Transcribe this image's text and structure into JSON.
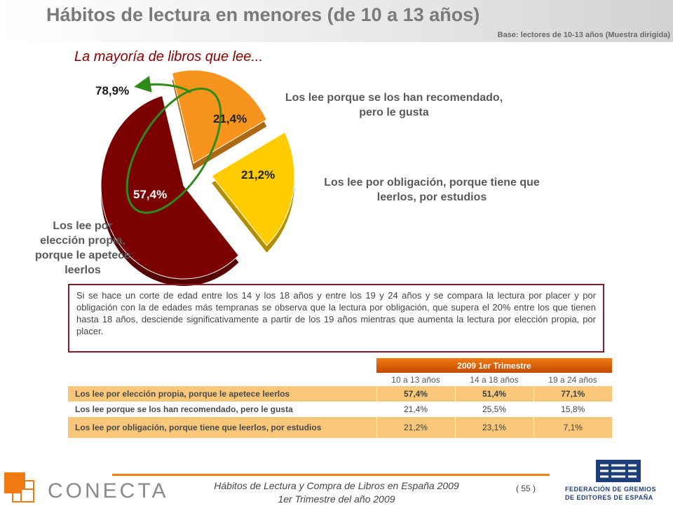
{
  "header": {
    "title": "Hábitos de lectura en menores (de 10 a 13 años)",
    "base": "Base: lectores de 10-13 años (Muestra dirigida)"
  },
  "subtitle": "La mayoría de libros que lee...",
  "chart_data": {
    "type": "pie",
    "slices": [
      {
        "label": "Los lee por elección propia, porque le apetece leerlos",
        "value": 57.4,
        "display": "57,4%",
        "color": "#7b0000"
      },
      {
        "label": "Los lee porque se los han recomendado, pero le gusta",
        "value": 21.4,
        "display": "21,4%",
        "color": "#f7941d"
      },
      {
        "label": "Los lee por obligación, porque tiene que leerlos, por estudios",
        "value": 21.2,
        "display": "21,2%",
        "color": "#ffcc00"
      }
    ],
    "annotation": "78,9%"
  },
  "labels": {
    "recommended_line1": "Los lee porque se los han recomendado,",
    "recommended_line2": "pero le gusta",
    "obligation_line1": "Los lee por obligación, porque tiene que",
    "obligation_line2": "leerlos, por estudios",
    "choice_line1": "Los lee por",
    "choice_line2": "elección propia,",
    "choice_line3": "porque le apetece",
    "choice_line4": "leerlos"
  },
  "note": "Si se hace un corte de edad entre los 14 y los 18 años y entre los 19 y 24 años y se compara la lectura por placer y por obligación con la de edades más tempranas se observa que la lectura por obligación, que supera el 20% entre los que tienen hasta 18 años, desciende significativamente a partir de los 19 años mientras que aumenta la lectura por elección propia, por placer.",
  "table": {
    "group_header": "2009 1er Trimestre",
    "columns": [
      "10 a 13 años",
      "14 a 18 años",
      "19 a 24 años"
    ],
    "rows": [
      {
        "label": "Los lee por elección propia, porque le apetece leerlos",
        "values": [
          "57,4%",
          "51,4%",
          "77,1%"
        ]
      },
      {
        "label": "Los lee porque se los han recomendado, pero le gusta",
        "values": [
          "21,4%",
          "25,5%",
          "15,8%"
        ]
      },
      {
        "label": "Los lee por obligación, porque tiene que leerlos, por estudios",
        "values": [
          "21,2%",
          "23,1%",
          "7,1%"
        ]
      }
    ]
  },
  "footer": {
    "line1": "Hábitos de Lectura y Compra de Libros en España 2009",
    "line2": "1er Trimestre del año 2009",
    "page": "( 55 )",
    "logo_left": "CONECTA",
    "logo_right_line1": "FEDERACIÓN DE GREMIOS",
    "logo_right_line2": "DE EDITORES DE ESPAÑA"
  }
}
